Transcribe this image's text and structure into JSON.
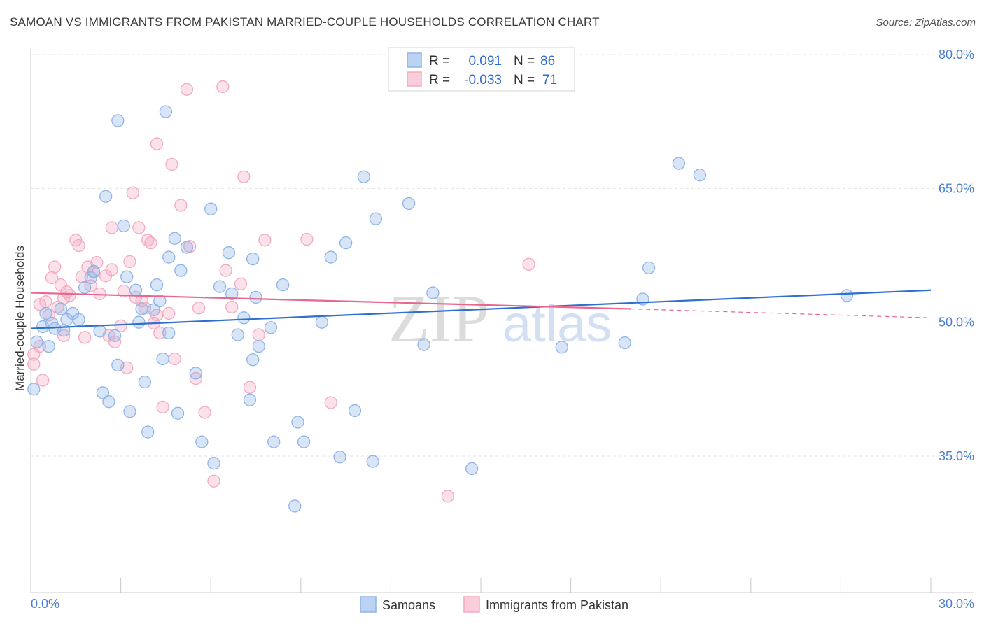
{
  "title": "SAMOAN VS IMMIGRANTS FROM PAKISTAN MARRIED-COUPLE HOUSEHOLDS CORRELATION CHART",
  "source": "Source: ZipAtlas.com",
  "watermark": "ZIPatlas",
  "chart_data": {
    "type": "scatter",
    "xlabel": "",
    "ylabel": "Married-couple Households",
    "xlim": [
      0,
      30
    ],
    "ylim": [
      20,
      82
    ],
    "y_ticks": [
      35,
      50,
      65,
      80
    ],
    "y_tick_labels": [
      "35.0%",
      "50.0%",
      "65.0%",
      "80.0%"
    ],
    "x_tick_labels": [
      "0.0%",
      "30.0%"
    ],
    "grid": true,
    "legend_position": "top-center",
    "series": [
      {
        "name": "Samoans",
        "color": "#8fb4e8",
        "line_color": "#2f6fcf",
        "R": "0.091",
        "N": "86",
        "trend": {
          "x": [
            0,
            30
          ],
          "y": [
            49.3,
            53.6
          ]
        },
        "points": [
          [
            0.1,
            42.5
          ],
          [
            0.2,
            47.8
          ],
          [
            0.4,
            49.5
          ],
          [
            0.5,
            51.0
          ],
          [
            0.6,
            47.3
          ],
          [
            0.7,
            49.9
          ],
          [
            0.8,
            49.3
          ],
          [
            1.0,
            51.5
          ],
          [
            1.1,
            49.1
          ],
          [
            1.2,
            50.3
          ],
          [
            1.4,
            51.0
          ],
          [
            1.6,
            50.3
          ],
          [
            1.8,
            53.9
          ],
          [
            2.0,
            55.0
          ],
          [
            2.1,
            55.7
          ],
          [
            2.3,
            49.0
          ],
          [
            2.4,
            42.1
          ],
          [
            2.5,
            64.1
          ],
          [
            2.6,
            41.1
          ],
          [
            2.8,
            48.5
          ],
          [
            2.9,
            45.2
          ],
          [
            2.9,
            72.6
          ],
          [
            3.1,
            60.8
          ],
          [
            3.2,
            55.1
          ],
          [
            3.3,
            40.0
          ],
          [
            3.5,
            53.6
          ],
          [
            3.6,
            50.0
          ],
          [
            3.7,
            51.5
          ],
          [
            3.8,
            43.3
          ],
          [
            3.9,
            37.7
          ],
          [
            4.1,
            51.4
          ],
          [
            4.2,
            54.2
          ],
          [
            4.3,
            52.4
          ],
          [
            4.4,
            45.9
          ],
          [
            4.5,
            73.6
          ],
          [
            4.6,
            57.3
          ],
          [
            4.6,
            48.8
          ],
          [
            4.8,
            59.4
          ],
          [
            4.9,
            39.8
          ],
          [
            5.0,
            55.8
          ],
          [
            5.2,
            58.4
          ],
          [
            5.7,
            36.6
          ],
          [
            5.5,
            44.3
          ],
          [
            6.0,
            62.7
          ],
          [
            6.1,
            34.2
          ],
          [
            6.3,
            54.0
          ],
          [
            6.6,
            57.8
          ],
          [
            6.7,
            53.2
          ],
          [
            6.9,
            48.6
          ],
          [
            7.1,
            50.5
          ],
          [
            7.3,
            41.3
          ],
          [
            7.4,
            45.8
          ],
          [
            7.6,
            47.3
          ],
          [
            7.5,
            52.8
          ],
          [
            7.4,
            57.1
          ],
          [
            8.0,
            49.4
          ],
          [
            8.4,
            54.2
          ],
          [
            8.1,
            36.6
          ],
          [
            8.8,
            29.4
          ],
          [
            8.9,
            38.8
          ],
          [
            9.1,
            36.6
          ],
          [
            9.7,
            50.0
          ],
          [
            10.0,
            57.3
          ],
          [
            10.3,
            34.9
          ],
          [
            10.5,
            58.9
          ],
          [
            10.8,
            40.1
          ],
          [
            11.1,
            66.3
          ],
          [
            11.4,
            34.4
          ],
          [
            11.5,
            61.6
          ],
          [
            12.6,
            63.3
          ],
          [
            13.1,
            47.5
          ],
          [
            13.4,
            53.3
          ],
          [
            14.7,
            33.6
          ],
          [
            17.7,
            47.2
          ],
          [
            19.8,
            47.7
          ],
          [
            20.4,
            52.6
          ],
          [
            20.6,
            56.1
          ],
          [
            21.6,
            67.8
          ],
          [
            22.3,
            66.5
          ],
          [
            27.2,
            53.0
          ]
        ]
      },
      {
        "name": "Immigrants from Pakistan",
        "color": "#f4a9c0",
        "line_color": "#e8668f",
        "R": "-0.033",
        "N": "71",
        "trend": {
          "x": [
            0,
            20
          ],
          "y": [
            53.3,
            51.5
          ]
        },
        "trend_dashed": {
          "x": [
            20,
            30
          ],
          "y": [
            51.5,
            50.5
          ]
        },
        "points": [
          [
            0.1,
            46.4
          ],
          [
            0.1,
            45.3
          ],
          [
            0.3,
            47.3
          ],
          [
            0.3,
            52.0
          ],
          [
            0.4,
            43.5
          ],
          [
            0.5,
            52.3
          ],
          [
            0.6,
            50.8
          ],
          [
            0.7,
            55.0
          ],
          [
            0.8,
            56.2
          ],
          [
            0.9,
            51.7
          ],
          [
            1.0,
            54.2
          ],
          [
            1.1,
            48.5
          ],
          [
            1.1,
            52.7
          ],
          [
            1.2,
            53.4
          ],
          [
            1.3,
            53.0
          ],
          [
            1.5,
            59.2
          ],
          [
            1.6,
            58.6
          ],
          [
            1.7,
            55.1
          ],
          [
            1.8,
            48.3
          ],
          [
            1.9,
            56.2
          ],
          [
            2.0,
            54.1
          ],
          [
            2.1,
            55.6
          ],
          [
            2.2,
            56.7
          ],
          [
            2.3,
            53.2
          ],
          [
            2.5,
            55.2
          ],
          [
            2.6,
            48.5
          ],
          [
            2.7,
            55.9
          ],
          [
            2.7,
            60.6
          ],
          [
            2.8,
            47.8
          ],
          [
            3.0,
            49.6
          ],
          [
            3.1,
            53.5
          ],
          [
            3.2,
            44.9
          ],
          [
            3.3,
            56.8
          ],
          [
            3.4,
            64.5
          ],
          [
            3.5,
            52.8
          ],
          [
            3.6,
            60.6
          ],
          [
            3.7,
            52.4
          ],
          [
            3.8,
            51.6
          ],
          [
            3.9,
            59.2
          ],
          [
            4.0,
            58.9
          ],
          [
            4.1,
            49.9
          ],
          [
            4.2,
            70.0
          ],
          [
            4.2,
            50.8
          ],
          [
            4.3,
            48.8
          ],
          [
            4.4,
            40.5
          ],
          [
            4.6,
            51.0
          ],
          [
            4.7,
            67.7
          ],
          [
            4.8,
            45.9
          ],
          [
            5.0,
            63.1
          ],
          [
            5.2,
            76.1
          ],
          [
            5.3,
            58.5
          ],
          [
            5.5,
            43.7
          ],
          [
            5.6,
            51.6
          ],
          [
            5.8,
            39.9
          ],
          [
            6.1,
            32.2
          ],
          [
            6.4,
            76.4
          ],
          [
            6.5,
            55.8
          ],
          [
            6.7,
            51.7
          ],
          [
            7.0,
            54.3
          ],
          [
            7.1,
            66.3
          ],
          [
            7.3,
            42.7
          ],
          [
            7.6,
            48.6
          ],
          [
            7.8,
            59.2
          ],
          [
            9.2,
            59.3
          ],
          [
            10.0,
            41.0
          ],
          [
            13.9,
            30.5
          ],
          [
            16.6,
            56.5
          ]
        ]
      }
    ]
  }
}
